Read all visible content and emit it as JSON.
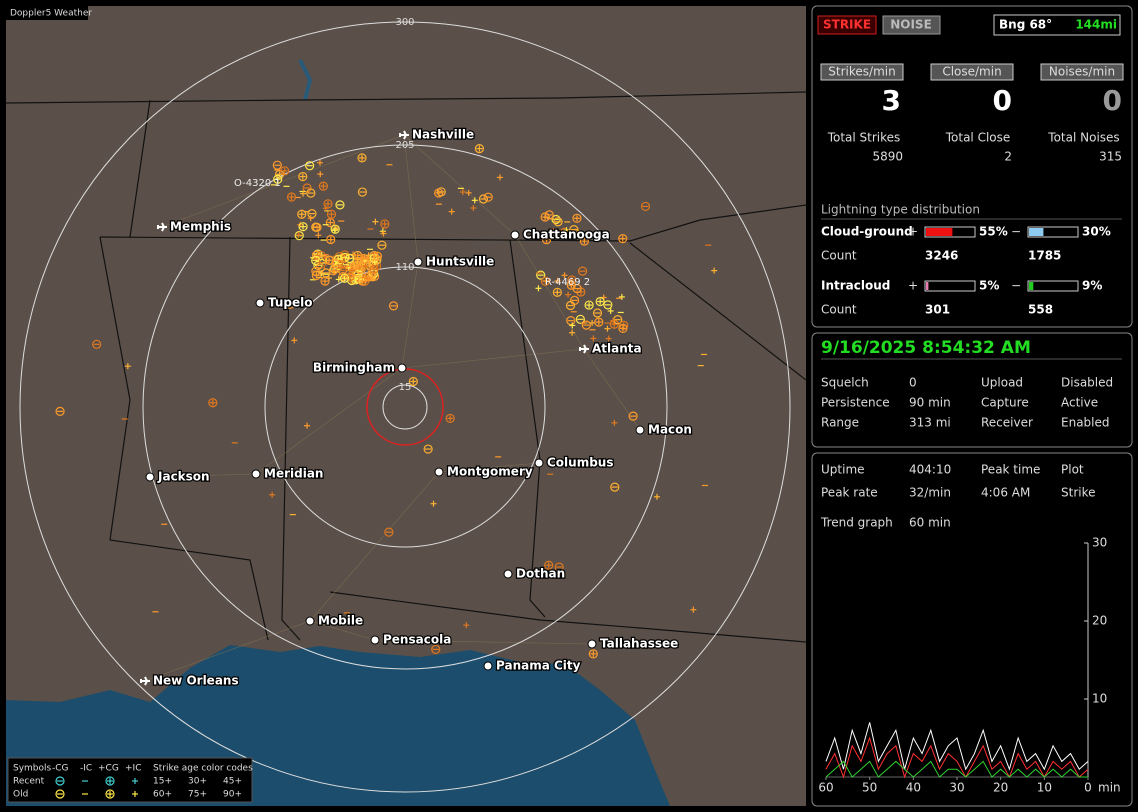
{
  "map": {
    "brand": "Doppler5 Weather",
    "ring_labels": [
      "300",
      "205",
      "110",
      "15"
    ],
    "airspace": [
      "O-4320 1",
      "R-4469 2"
    ],
    "cities": [
      "Nashville",
      "Memphis",
      "Chattanooga",
      "Huntsville",
      "Tupelo",
      "Birmingham",
      "Atlanta",
      "Macon",
      "Jackson",
      "Meridian",
      "Montgomery",
      "Columbus",
      "Dothan",
      "Mobile",
      "Pensacola",
      "Tallahassee",
      "Panama City",
      "New Orleans"
    ],
    "legend": {
      "symbols_label": "Symbols",
      "types": [
        "-CG",
        "-IC",
        "+CG",
        "+IC"
      ],
      "age_label": "Strike age color codes",
      "rows": [
        {
          "label": "Recent",
          "ages": [
            {
              "label": "15+",
              "color": "#ffee44"
            },
            {
              "label": "30+",
              "color": "#ffb030"
            },
            {
              "label": "45+",
              "color": "#ff9a2a"
            }
          ]
        },
        {
          "label": "Old",
          "ages": [
            {
              "label": "60+",
              "color": "#ff8a20"
            },
            {
              "label": "75+",
              "color": "#f07a20"
            },
            {
              "label": "90+",
              "color": "#e06a20"
            }
          ]
        }
      ]
    }
  },
  "strike_panel": {
    "buttons": [
      "STRIKE",
      "NOISE"
    ],
    "bearing": "Bng 68°",
    "distance": "144mi",
    "rates": [
      {
        "label": "Strikes/min",
        "value": 3
      },
      {
        "label": "Close/min",
        "value": 0
      },
      {
        "label": "Noises/min",
        "value": 0
      }
    ],
    "totals": [
      {
        "label": "Total Strikes",
        "value": 5890
      },
      {
        "label": "Total Close",
        "value": 2
      },
      {
        "label": "Total Noises",
        "value": 315
      }
    ],
    "distribution": {
      "title": "Lightning type distribution",
      "count_label": "Count",
      "types": [
        {
          "name": "Cloud-ground",
          "positive": {
            "sign": "+",
            "pct": {
              "value": 55,
              "label": "55%"
            },
            "count": 3246,
            "color": "#ee1111"
          },
          "negative": {
            "sign": "−",
            "pct": {
              "value": 30,
              "label": "30%"
            },
            "count": 1785,
            "color": "#8ecbf0"
          }
        },
        {
          "name": "Intracloud",
          "positive": {
            "sign": "+",
            "pct": {
              "value": 5,
              "label": "5%"
            },
            "count": 301,
            "color": "#e87bb0"
          },
          "negative": {
            "sign": "−",
            "pct": {
              "value": 9,
              "label": "9%"
            },
            "count": 558,
            "color": "#22cc22"
          }
        }
      ]
    }
  },
  "status": {
    "datetime": "9/16/2025 8:54:32 AM",
    "left": [
      {
        "label": "Squelch",
        "value": 0
      },
      {
        "label": "Persistence",
        "value": "90 min"
      },
      {
        "label": "Range",
        "value": "313 mi"
      }
    ],
    "right": [
      {
        "label": "Upload",
        "value": "Disabled",
        "color": "#bbbbbb"
      },
      {
        "label": "Capture",
        "value": "Active",
        "color": "#22dd22"
      },
      {
        "label": "Receiver",
        "value": "Enabled",
        "color": "#22dd22"
      }
    ]
  },
  "stats": {
    "uptime": {
      "label": "Uptime",
      "value": "404:10"
    },
    "peak_rate": {
      "label": "Peak rate",
      "value": "32/min"
    },
    "peak_time": {
      "label": "Peak time",
      "value": "4:06 AM"
    },
    "plot": {
      "label": "Plot",
      "value": "Strike"
    }
  },
  "chart_data": {
    "type": "line",
    "label": "Trend graph",
    "window": "60 min",
    "x_unit": "min",
    "x": [
      60,
      58,
      56,
      54,
      52,
      50,
      48,
      46,
      44,
      42,
      40,
      38,
      36,
      34,
      32,
      30,
      28,
      26,
      24,
      22,
      20,
      18,
      16,
      14,
      12,
      10,
      8,
      6,
      4,
      2,
      0
    ],
    "xlim": [
      60,
      0
    ],
    "xticks": [
      60,
      50,
      40,
      30,
      20,
      10,
      0
    ],
    "ylim": [
      0,
      30
    ],
    "yticks": [
      10,
      20,
      30
    ],
    "series": [
      {
        "color": "#ffffff",
        "values": [
          2,
          5,
          1,
          6,
          3,
          7,
          2,
          4,
          6,
          1,
          5,
          3,
          6,
          2,
          4,
          5,
          1,
          3,
          6,
          2,
          4,
          1,
          5,
          2,
          3,
          1,
          4,
          2,
          3,
          1,
          2
        ]
      },
      {
        "color": "#ff3030",
        "values": [
          1,
          3,
          0,
          4,
          2,
          5,
          1,
          3,
          4,
          0,
          3,
          2,
          4,
          1,
          3,
          2,
          0,
          2,
          4,
          1,
          2,
          0,
          3,
          1,
          2,
          0,
          2,
          1,
          2,
          0,
          1
        ]
      },
      {
        "color": "#30d030",
        "values": [
          0,
          1,
          2,
          0,
          1,
          2,
          0,
          1,
          2,
          1,
          0,
          1,
          2,
          0,
          1,
          1,
          0,
          1,
          2,
          0,
          1,
          0,
          1,
          0,
          1,
          0,
          1,
          0,
          1,
          0,
          0
        ]
      }
    ]
  }
}
